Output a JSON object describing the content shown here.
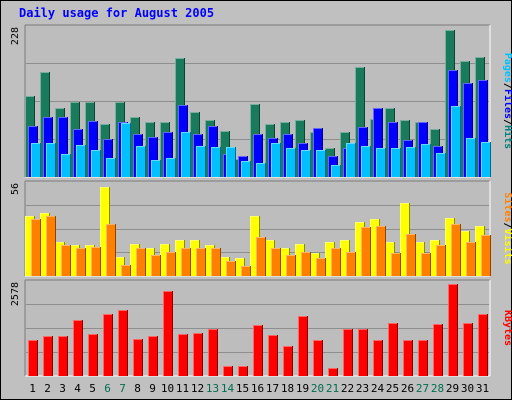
{
  "chart_data": {
    "type": "bar",
    "title": "Daily usage for August 2005",
    "days": [
      "1",
      "2",
      "3",
      "4",
      "5",
      "6",
      "7",
      "8",
      "9",
      "10",
      "11",
      "12",
      "13",
      "14",
      "15",
      "16",
      "17",
      "18",
      "19",
      "20",
      "21",
      "22",
      "23",
      "24",
      "25",
      "26",
      "27",
      "28",
      "29",
      "30",
      "31"
    ],
    "weekend_days": [
      "6",
      "7",
      "13",
      "14",
      "20",
      "21",
      "27",
      "28"
    ],
    "panels": [
      {
        "id": "hits",
        "scale_label": "228",
        "ylim": [
          0,
          228
        ],
        "axis_labels": [
          {
            "text": "Pages",
            "color": "#00c0ff"
          },
          {
            "text": "/",
            "color": "#000000"
          },
          {
            "text": "Files",
            "color": "#0000ff"
          },
          {
            "text": "/",
            "color": "#000000"
          },
          {
            "text": "Hits",
            "color": "#008080"
          }
        ],
        "series": [
          {
            "name": "Hits",
            "color": "#1a7a5c",
            "values": [
              125,
              162,
              106,
              115,
              115,
              81,
              115,
              93,
              84,
              84,
              183,
              100,
              88,
              71,
              28,
              113,
              81,
              84,
              88,
              70,
              44,
              70,
              170,
              90,
              106,
              88,
              84,
              74,
              227,
              179,
              185
            ]
          },
          {
            "name": "Files",
            "color": "#0000ff",
            "values": [
              79,
              92,
              92,
              74,
              86,
              59,
              84,
              67,
              62,
              70,
              111,
              67,
              79,
              35,
              33,
              66,
              60,
              66,
              52,
              75,
              33,
              44,
              77,
              106,
              84,
              57,
              84,
              48,
              165,
              145,
              150
            ]
          },
          {
            "name": "Pages",
            "color": "#00c0ff",
            "values": [
              52,
              52,
              35,
              50,
              41,
              30,
              83,
              48,
              26,
              29,
              70,
              48,
              46,
              46,
              25,
              22,
              52,
              44,
              42,
              42,
              19,
              52,
              48,
              44,
              44,
              46,
              51,
              37,
              110,
              60,
              54
            ]
          }
        ]
      },
      {
        "id": "visits",
        "scale_label": "56",
        "ylim": [
          0,
          56
        ],
        "axis_labels": [
          {
            "text": "Sites",
            "color": "#ff8000"
          },
          {
            "text": "/",
            "color": "#000000"
          },
          {
            "text": "Visits",
            "color": "#ffff00"
          }
        ],
        "series": [
          {
            "name": "Visits",
            "color": "#ffff00",
            "values": [
              37,
              39,
              21,
              19,
              19,
              55,
              12,
              20,
              17,
              20,
              22,
              22,
              19,
              12,
              11,
              37,
              22,
              17,
              20,
              14,
              21,
              22,
              33,
              35,
              21,
              45,
              21,
              22,
              36,
              28,
              31
            ]
          },
          {
            "name": "Sites",
            "color": "#ff8000",
            "values": [
              35,
              37,
              19,
              17,
              18,
              32,
              7,
              17,
              13,
              15,
              17,
              17,
              17,
              9,
              6,
              24,
              17,
              13,
              15,
              11,
              17,
              15,
              30,
              31,
              14,
              26,
              14,
              19,
              32,
              21,
              25
            ]
          }
        ]
      },
      {
        "id": "kbytes",
        "scale_label": "2578",
        "ylim": [
          0,
          2578
        ],
        "axis_labels": [
          {
            "text": "KBytes",
            "color": "#ff0000"
          }
        ],
        "series": [
          {
            "name": "KBytes",
            "color": "#ff0000",
            "values": [
              1009,
              1108,
              1108,
              1563,
              1188,
              1750,
              1840,
              1030,
              1108,
              2380,
              1188,
              1208,
              1308,
              268,
              268,
              1438,
              1157,
              833,
              1680,
              1018,
              228,
              1308,
              1308,
              1018,
              1478,
              1018,
              1018,
              1458,
              2578,
              1484,
              1740
            ]
          }
        ]
      }
    ]
  },
  "colors": {
    "background": "#c0c0c0",
    "plot_area": "#bdbdbd",
    "gridline": "#8e8e8e",
    "title": "#0000ff",
    "weekday_label": "#000000",
    "weekend_label": "#006e4f"
  }
}
